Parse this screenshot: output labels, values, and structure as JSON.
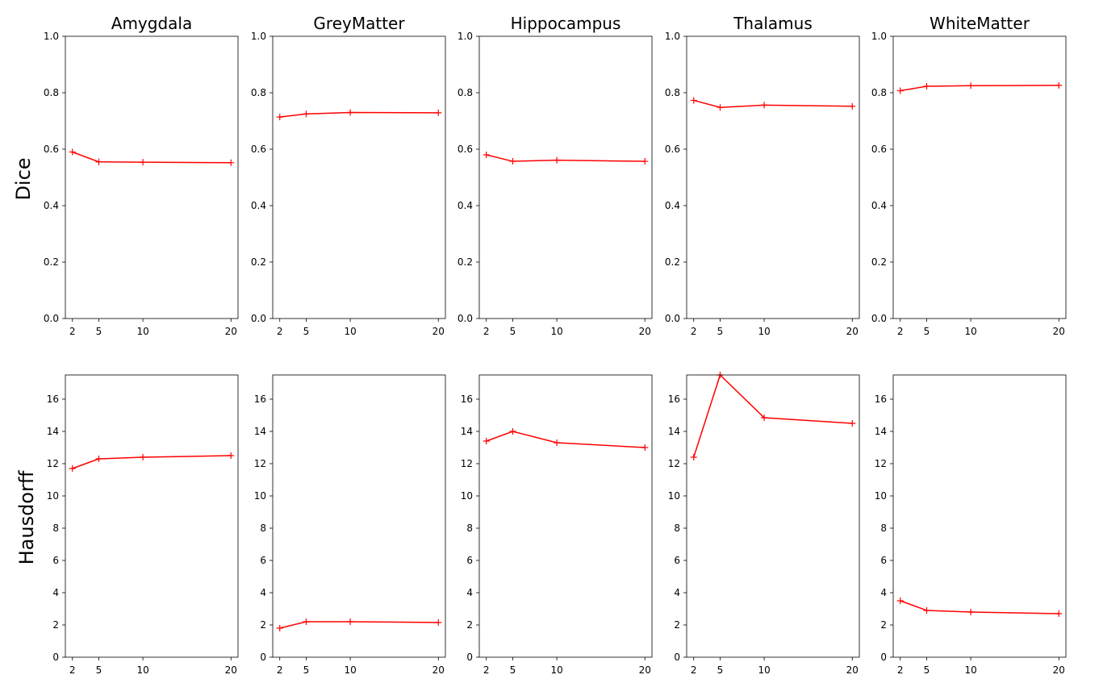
{
  "figure": {
    "row_labels": [
      "Dice",
      "Hausdorff"
    ],
    "line_color": "#ff0000",
    "marker": "plus"
  },
  "chart_data": [
    {
      "type": "line",
      "title": "Amygdala",
      "ylabel": "Dice",
      "x": [
        2,
        5,
        10,
        20
      ],
      "xticks": [
        2,
        5,
        10,
        20
      ],
      "xlim": [
        1.2,
        20.8
      ],
      "yticks": [
        0.0,
        0.2,
        0.4,
        0.6,
        0.8,
        1.0
      ],
      "ylim": [
        0.0,
        1.0
      ],
      "series": [
        {
          "values": [
            0.59,
            0.555,
            0.554,
            0.552
          ]
        }
      ]
    },
    {
      "type": "line",
      "title": "GreyMatter",
      "ylabel": "Dice",
      "x": [
        2,
        5,
        10,
        20
      ],
      "xticks": [
        2,
        5,
        10,
        20
      ],
      "xlim": [
        1.2,
        20.8
      ],
      "yticks": [
        0.0,
        0.2,
        0.4,
        0.6,
        0.8,
        1.0
      ],
      "ylim": [
        0.0,
        1.0
      ],
      "series": [
        {
          "values": [
            0.714,
            0.725,
            0.73,
            0.729
          ]
        }
      ]
    },
    {
      "type": "line",
      "title": "Hippocampus",
      "ylabel": "Dice",
      "x": [
        2,
        5,
        10,
        20
      ],
      "xticks": [
        2,
        5,
        10,
        20
      ],
      "xlim": [
        1.2,
        20.8
      ],
      "yticks": [
        0.0,
        0.2,
        0.4,
        0.6,
        0.8,
        1.0
      ],
      "ylim": [
        0.0,
        1.0
      ],
      "series": [
        {
          "values": [
            0.58,
            0.557,
            0.561,
            0.557
          ]
        }
      ]
    },
    {
      "type": "line",
      "title": "Thalamus",
      "ylabel": "Dice",
      "x": [
        2,
        5,
        10,
        20
      ],
      "xticks": [
        2,
        5,
        10,
        20
      ],
      "xlim": [
        1.2,
        20.8
      ],
      "yticks": [
        0.0,
        0.2,
        0.4,
        0.6,
        0.8,
        1.0
      ],
      "ylim": [
        0.0,
        1.0
      ],
      "series": [
        {
          "values": [
            0.773,
            0.748,
            0.756,
            0.752
          ]
        }
      ]
    },
    {
      "type": "line",
      "title": "WhiteMatter",
      "ylabel": "Dice",
      "x": [
        2,
        5,
        10,
        20
      ],
      "xticks": [
        2,
        5,
        10,
        20
      ],
      "xlim": [
        1.2,
        20.8
      ],
      "yticks": [
        0.0,
        0.2,
        0.4,
        0.6,
        0.8,
        1.0
      ],
      "ylim": [
        0.0,
        1.0
      ],
      "series": [
        {
          "values": [
            0.807,
            0.823,
            0.825,
            0.826
          ]
        }
      ]
    },
    {
      "type": "line",
      "title": "",
      "ylabel": "Hausdorff",
      "x": [
        2,
        5,
        10,
        20
      ],
      "xticks": [
        2,
        5,
        10,
        20
      ],
      "xlim": [
        1.2,
        20.8
      ],
      "yticks": [
        0,
        2,
        4,
        6,
        8,
        10,
        12,
        14,
        16
      ],
      "ylim": [
        0,
        17.5
      ],
      "series": [
        {
          "values": [
            11.7,
            12.3,
            12.4,
            12.5
          ]
        }
      ]
    },
    {
      "type": "line",
      "title": "",
      "ylabel": "Hausdorff",
      "x": [
        2,
        5,
        10,
        20
      ],
      "xticks": [
        2,
        5,
        10,
        20
      ],
      "xlim": [
        1.2,
        20.8
      ],
      "yticks": [
        0,
        2,
        4,
        6,
        8,
        10,
        12,
        14,
        16
      ],
      "ylim": [
        0,
        17.5
      ],
      "series": [
        {
          "values": [
            1.8,
            2.2,
            2.2,
            2.15
          ]
        }
      ]
    },
    {
      "type": "line",
      "title": "",
      "ylabel": "Hausdorff",
      "x": [
        2,
        5,
        10,
        20
      ],
      "xticks": [
        2,
        5,
        10,
        20
      ],
      "xlim": [
        1.2,
        20.8
      ],
      "yticks": [
        0,
        2,
        4,
        6,
        8,
        10,
        12,
        14,
        16
      ],
      "ylim": [
        0,
        17.5
      ],
      "series": [
        {
          "values": [
            13.4,
            14.0,
            13.3,
            13.0
          ]
        }
      ]
    },
    {
      "type": "line",
      "title": "",
      "ylabel": "Hausdorff",
      "x": [
        2,
        5,
        10,
        20
      ],
      "xticks": [
        2,
        5,
        10,
        20
      ],
      "xlim": [
        1.2,
        20.8
      ],
      "yticks": [
        0,
        2,
        4,
        6,
        8,
        10,
        12,
        14,
        16
      ],
      "ylim": [
        0,
        17.5
      ],
      "series": [
        {
          "values": [
            12.4,
            17.5,
            14.85,
            14.5
          ]
        }
      ]
    },
    {
      "type": "line",
      "title": "",
      "ylabel": "Hausdorff",
      "x": [
        2,
        5,
        10,
        20
      ],
      "xticks": [
        2,
        5,
        10,
        20
      ],
      "xlim": [
        1.2,
        20.8
      ],
      "yticks": [
        0,
        2,
        4,
        6,
        8,
        10,
        12,
        14,
        16
      ],
      "ylim": [
        0,
        17.5
      ],
      "series": [
        {
          "values": [
            3.5,
            2.9,
            2.8,
            2.7
          ]
        }
      ]
    }
  ]
}
